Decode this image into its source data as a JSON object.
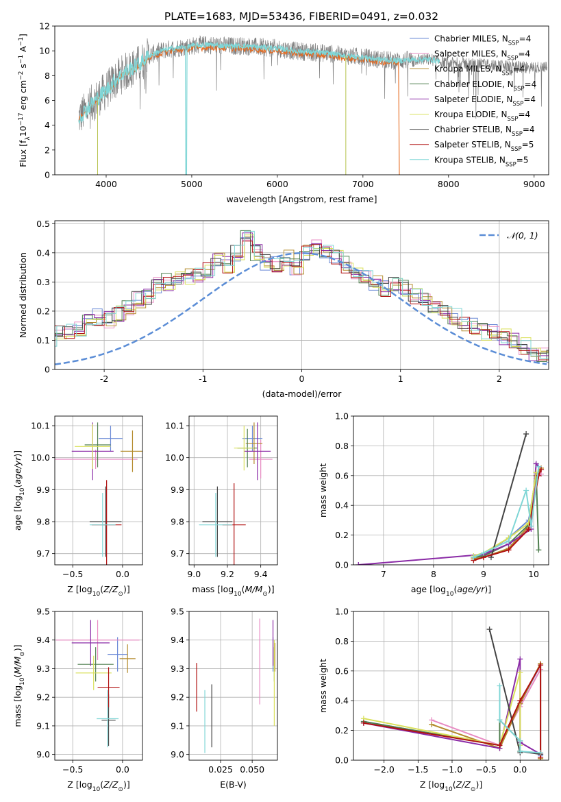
{
  "figure_title": "PLATE=1683, MJD=53436, FIBERID=0491, z=0.032",
  "colors": [
    "#6a89d6",
    "#e88bc3",
    "#b38a2a",
    "#4f7f4f",
    "#8a2aa6",
    "#d9e05a",
    "#444444",
    "#b01010",
    "#7fd6d6"
  ],
  "data_color": "#808080",
  "model_color_main": "#7fd6d6",
  "model_color_orange": "#e66a1f",
  "chart_data": [
    {
      "id": "spectrum",
      "type": "line",
      "xlabel": "wavelength [Angstrom, rest frame]",
      "ylabel": "Flux [f_λ10^-17 erg cm^-2 s^-1 A^-1]",
      "xlim": [
        3400,
        9170
      ],
      "ylim": [
        0,
        12
      ],
      "xticks": [
        4000,
        5000,
        6000,
        7000,
        8000,
        9000
      ],
      "yticks": [
        0,
        2,
        4,
        6,
        8,
        10,
        12
      ],
      "grid": false,
      "legend_position": "top-right",
      "legend": [
        {
          "name": "Chabrier MILES, N",
          "sub": "SSP",
          "suffix": "=4"
        },
        {
          "name": "Salpeter MILES, N",
          "sub": "SSP",
          "suffix": "=4"
        },
        {
          "name": "Kroupa MILES, N",
          "sub": "SSP",
          "suffix": "=4"
        },
        {
          "name": "Chabrier ELODIE, N",
          "sub": "SSP",
          "suffix": "=4"
        },
        {
          "name": "Salpeter ELODIE, N",
          "sub": "SSP",
          "suffix": "=4"
        },
        {
          "name": "Kroupa ELODIE, N",
          "sub": "SSP",
          "suffix": "=4"
        },
        {
          "name": "Chabrier STELIB, N",
          "sub": "SSP",
          "suffix": "=4"
        },
        {
          "name": "Salpeter STELIB, N",
          "sub": "SSP",
          "suffix": "=5"
        },
        {
          "name": "Kroupa STELIB, N",
          "sub": "SSP",
          "suffix": "=5"
        }
      ],
      "continuum": [
        [
          3680,
          4.6
        ],
        [
          3800,
          5.5
        ],
        [
          3900,
          6.2
        ],
        [
          4000,
          6.8
        ],
        [
          4100,
          7.6
        ],
        [
          4200,
          8.2
        ],
        [
          4300,
          8.6
        ],
        [
          4400,
          9.0
        ],
        [
          4500,
          9.6
        ],
        [
          4600,
          9.9
        ],
        [
          4700,
          10.1
        ],
        [
          4800,
          10.2
        ],
        [
          4900,
          10.3
        ],
        [
          5000,
          10.4
        ],
        [
          5200,
          10.5
        ],
        [
          5400,
          10.4
        ],
        [
          5600,
          10.4
        ],
        [
          5800,
          10.3
        ],
        [
          6000,
          10.2
        ],
        [
          6200,
          10.0
        ],
        [
          6400,
          9.9
        ],
        [
          6600,
          9.8
        ],
        [
          6800,
          9.6
        ],
        [
          7000,
          9.5
        ],
        [
          7200,
          9.3
        ],
        [
          7400,
          9.2
        ],
        [
          7600,
          9.3
        ],
        [
          7800,
          9.3
        ],
        [
          8000,
          9.0
        ],
        [
          8200,
          9.0
        ],
        [
          8400,
          8.9
        ],
        [
          8600,
          8.8
        ],
        [
          8800,
          8.7
        ],
        [
          9000,
          8.6
        ],
        [
          9150,
          8.8
        ]
      ]
    },
    {
      "id": "residuals",
      "type": "step",
      "xlabel": "(data-model)/error",
      "ylabel": "Normed distribution",
      "xlim": [
        -2.5,
        2.5
      ],
      "ylim": [
        0,
        0.51
      ],
      "xticks": [
        -2,
        -1,
        0,
        1,
        2
      ],
      "yticks": [
        0.0,
        0.1,
        0.2,
        0.3,
        0.4,
        0.5
      ],
      "grid": true,
      "legend_position": "top-right",
      "reference_label": "N(0,1)",
      "bin_width": 0.1,
      "hist_base": [
        0.03,
        0.02,
        0.03,
        0.05,
        0.05,
        0.05,
        0.07,
        0.08,
        0.1,
        0.1,
        0.12,
        0.13,
        0.14,
        0.16,
        0.18,
        0.17,
        0.19,
        0.21,
        0.24,
        0.25,
        0.29,
        0.3,
        0.32,
        0.32,
        0.32,
        0.34,
        0.37,
        0.36,
        0.4,
        0.45,
        0.4,
        0.37,
        0.36,
        0.38,
        0.35,
        0.4,
        0.42,
        0.4,
        0.38,
        0.36,
        0.32,
        0.32,
        0.3,
        0.28,
        0.3,
        0.28,
        0.25,
        0.24,
        0.21,
        0.19,
        0.18,
        0.16,
        0.15,
        0.13,
        0.13,
        0.11,
        0.1,
        0.08,
        0.06,
        0.05,
        0.05,
        0.04,
        0.04,
        0.03,
        0.03,
        0.03,
        0.02,
        0.02,
        0.02,
        0.01
      ]
    },
    {
      "id": "age_vs_Z",
      "type": "errorbar",
      "xlabel": "Z [log10(Z/Z⊙)]",
      "ylabel": "age  [log10(age/yr)]",
      "xlim": [
        -0.68,
        0.2
      ],
      "ylim": [
        9.665,
        10.13
      ],
      "xticks": [
        -0.5,
        0.0
      ],
      "xtick_labels": [
        "−0.5",
        "0.0"
      ],
      "yticks": [
        9.7,
        9.8,
        9.9,
        10.0,
        10.1
      ],
      "ytick_labels": [
        "9.7",
        "9.8",
        "9.9",
        "10.0",
        "10.1"
      ],
      "grid": true,
      "points": [
        {
          "x": -0.12,
          "xerr": 0.12,
          "y": 10.06,
          "yerr": 0.04,
          "c": 0
        },
        {
          "x": -0.27,
          "xerr": 0.42,
          "y": 9.995,
          "yerr": 0.03,
          "c": 1
        },
        {
          "x": 0.1,
          "xerr": 0.12,
          "y": 10.02,
          "yerr": 0.065,
          "c": 2
        },
        {
          "x": -0.25,
          "xerr": 0.13,
          "y": 10.04,
          "yerr": 0.07,
          "c": 3
        },
        {
          "x": -0.3,
          "xerr": 0.21,
          "y": 10.02,
          "yerr": 0.09,
          "c": 4
        },
        {
          "x": -0.3,
          "xerr": 0.18,
          "y": 10.035,
          "yerr": 0.07,
          "c": 5
        },
        {
          "x": -0.17,
          "xerr": 0.16,
          "y": 9.8,
          "yerr": 0.11,
          "c": 6
        },
        {
          "x": -0.16,
          "xerr": 0.15,
          "y": 9.79,
          "yerr": 0.14,
          "c": 7
        },
        {
          "x": -0.2,
          "xerr": 0.13,
          "y": 9.79,
          "yerr": 0.1,
          "c": 8
        }
      ]
    },
    {
      "id": "age_vs_mass",
      "type": "errorbar",
      "xlabel": "mass [log10(M/M⊙)]",
      "ylabel": "",
      "xlim": [
        8.97,
        9.5
      ],
      "ylim": [
        9.665,
        10.13
      ],
      "xticks": [
        9.0,
        9.2,
        9.4
      ],
      "xtick_labels": [
        "9.0",
        "9.2",
        "9.4"
      ],
      "yticks": [
        9.7,
        9.8,
        9.9,
        10.0,
        10.1
      ],
      "ytick_labels": [
        "9.7",
        "9.8",
        "9.9",
        "10.0",
        "10.1"
      ],
      "grid": true,
      "points": [
        {
          "x": 9.35,
          "xerr": 0.06,
          "y": 10.06,
          "yerr": 0.04,
          "c": 0
        },
        {
          "x": 9.4,
          "xerr": 0.07,
          "y": 9.995,
          "yerr": 0.06,
          "c": 1
        },
        {
          "x": 9.36,
          "xerr": 0.05,
          "y": 10.045,
          "yerr": 0.065,
          "c": 2
        },
        {
          "x": 9.32,
          "xerr": 0.06,
          "y": 10.03,
          "yerr": 0.06,
          "c": 3
        },
        {
          "x": 9.38,
          "xerr": 0.08,
          "y": 10.02,
          "yerr": 0.09,
          "c": 4
        },
        {
          "x": 9.3,
          "xerr": 0.06,
          "y": 10.03,
          "yerr": 0.07,
          "c": 5
        },
        {
          "x": 9.14,
          "xerr": 0.09,
          "y": 9.8,
          "yerr": 0.11,
          "c": 6
        },
        {
          "x": 9.24,
          "xerr": 0.07,
          "y": 9.79,
          "yerr": 0.13,
          "c": 7
        },
        {
          "x": 9.13,
          "xerr": 0.1,
          "y": 9.79,
          "yerr": 0.1,
          "c": 8
        }
      ]
    },
    {
      "id": "weight_vs_age",
      "type": "line",
      "xlabel": "age  [log10(age/yr)]",
      "ylabel": "mass weight",
      "xlim": [
        6.4,
        10.3
      ],
      "ylim": [
        0,
        1.0
      ],
      "xticks": [
        7,
        8,
        9,
        10
      ],
      "xtick_labels": [
        "7",
        "8",
        "9",
        "10"
      ],
      "yticks": [
        0.0,
        0.2,
        0.4,
        0.6,
        0.8,
        1.0
      ],
      "ytick_labels": [
        "0.0",
        "0.2",
        "0.4",
        "0.6",
        "0.8",
        "1.0"
      ],
      "grid": true,
      "series": [
        {
          "c": 0,
          "x": [
            8.8,
            9.0,
            9.5,
            9.9,
            10.05,
            10.15
          ],
          "y": [
            0.05,
            0.07,
            0.18,
            0.3,
            0.6,
            0.64
          ]
        },
        {
          "c": 1,
          "x": [
            8.8,
            9.0,
            9.5,
            9.9,
            10.05,
            10.15
          ],
          "y": [
            0.04,
            0.06,
            0.1,
            0.25,
            0.58,
            0.61
          ]
        },
        {
          "c": 2,
          "x": [
            8.8,
            9.0,
            9.5,
            9.9,
            10.05,
            10.15
          ],
          "y": [
            0.04,
            0.05,
            0.11,
            0.26,
            0.6,
            0.65
          ]
        },
        {
          "c": 3,
          "x": [
            8.8,
            9.0,
            9.5,
            9.9,
            10.05,
            10.1
          ],
          "y": [
            0.05,
            0.06,
            0.14,
            0.27,
            0.62,
            0.1
          ]
        },
        {
          "c": 4,
          "x": [
            6.5,
            9.0,
            9.5,
            9.95,
            10.05,
            10.1
          ],
          "y": [
            0.0,
            0.07,
            0.14,
            0.24,
            0.68,
            0.66
          ]
        },
        {
          "c": 5,
          "x": [
            8.8,
            9.0,
            9.5,
            9.9,
            10.05
          ],
          "y": [
            0.06,
            0.08,
            0.18,
            0.28,
            0.62
          ]
        },
        {
          "c": 6,
          "x": [
            9.15,
            9.85
          ],
          "y": [
            0.05,
            0.88
          ]
        },
        {
          "c": 7,
          "x": [
            8.8,
            9.0,
            9.5,
            9.9,
            10.1,
            10.15
          ],
          "y": [
            0.03,
            0.05,
            0.1,
            0.24,
            0.6,
            0.64
          ]
        },
        {
          "c": 8,
          "x": [
            8.8,
            9.0,
            9.5,
            9.85,
            9.95,
            10.1
          ],
          "y": [
            0.05,
            0.08,
            0.16,
            0.5,
            0.26,
            0.66
          ]
        }
      ]
    },
    {
      "id": "mass_vs_Z",
      "type": "errorbar",
      "xlabel": "Z [log10(Z/Z⊙)]",
      "ylabel": "mass [log10(M/M⊙)]",
      "xlim": [
        -0.68,
        0.2
      ],
      "ylim": [
        8.98,
        9.5
      ],
      "xticks": [
        -0.5,
        0.0
      ],
      "xtick_labels": [
        "−0.5",
        "0.0"
      ],
      "yticks": [
        9.0,
        9.1,
        9.2,
        9.3,
        9.4,
        9.5
      ],
      "ytick_labels": [
        "9.0",
        "9.1",
        "9.2",
        "9.3",
        "9.4",
        "9.5"
      ],
      "grid": true,
      "points": [
        {
          "x": -0.05,
          "xerr": 0.1,
          "y": 9.35,
          "yerr": 0.06,
          "c": 0
        },
        {
          "x": -0.25,
          "xerr": 0.42,
          "y": 9.4,
          "yerr": 0.07,
          "c": 1
        },
        {
          "x": 0.05,
          "xerr": 0.08,
          "y": 9.335,
          "yerr": 0.05,
          "c": 2
        },
        {
          "x": -0.27,
          "xerr": 0.18,
          "y": 9.315,
          "yerr": 0.06,
          "c": 3
        },
        {
          "x": -0.32,
          "xerr": 0.19,
          "y": 9.39,
          "yerr": 0.08,
          "c": 4
        },
        {
          "x": -0.29,
          "xerr": 0.18,
          "y": 9.285,
          "yerr": 0.06,
          "c": 5
        },
        {
          "x": -0.14,
          "xerr": 0.07,
          "y": 9.12,
          "yerr": 0.09,
          "c": 6
        },
        {
          "x": -0.14,
          "xerr": 0.11,
          "y": 9.235,
          "yerr": 0.07,
          "c": 7
        },
        {
          "x": -0.15,
          "xerr": 0.11,
          "y": 9.125,
          "yerr": 0.1,
          "c": 8
        }
      ]
    },
    {
      "id": "mass_vs_ebv",
      "type": "errorbar",
      "xlabel": "E(B-V)",
      "ylabel": "",
      "xlim": [
        0.0,
        0.07
      ],
      "ylim": [
        8.98,
        9.5
      ],
      "xticks": [
        0.025,
        0.05
      ],
      "xtick_labels": [
        "0.025",
        "0.050"
      ],
      "yticks": [
        9.0,
        9.1,
        9.2,
        9.3,
        9.4,
        9.5
      ],
      "ytick_labels": [
        "9.0",
        "9.1",
        "9.2",
        "9.3",
        "9.4",
        "9.5"
      ],
      "grid": true,
      "points": [
        {
          "x": 0.0665,
          "xerr": 0,
          "y": 9.35,
          "yerr": 0.06,
          "c": 0
        },
        {
          "x": 0.056,
          "xerr": 0,
          "y": 9.325,
          "yerr": 0.15,
          "c": 1
        },
        {
          "x": 0.068,
          "xerr": 0,
          "y": 9.34,
          "yerr": 0.05,
          "c": 2
        },
        {
          "x": 0.0675,
          "xerr": 0,
          "y": 9.315,
          "yerr": 0.06,
          "c": 3
        },
        {
          "x": 0.0665,
          "xerr": 0,
          "y": 9.39,
          "yerr": 0.08,
          "c": 4
        },
        {
          "x": 0.0675,
          "xerr": 0,
          "y": 9.25,
          "yerr": 0.15,
          "c": 5
        },
        {
          "x": 0.018,
          "xerr": 0,
          "y": 9.135,
          "yerr": 0.11,
          "c": 6
        },
        {
          "x": 0.006,
          "xerr": 0,
          "y": 9.235,
          "yerr": 0.085,
          "c": 7
        },
        {
          "x": 0.0125,
          "xerr": 0,
          "y": 9.115,
          "yerr": 0.11,
          "c": 8
        }
      ]
    },
    {
      "id": "weight_vs_Z",
      "type": "line",
      "xlabel": "Z [log10(Z/Z⊙)]",
      "ylabel": "mass weight",
      "xlim": [
        -2.45,
        0.42
      ],
      "ylim": [
        0,
        1.0
      ],
      "xticks": [
        -2.0,
        -1.5,
        -1.0,
        -0.5,
        0.0
      ],
      "xtick_labels": [
        "−2.0",
        "−1.5",
        "−1.0",
        "−0.5",
        "0.0"
      ],
      "yticks": [
        0.0,
        0.2,
        0.4,
        0.6,
        0.8,
        1.0
      ],
      "ytick_labels": [
        "0.0",
        "0.2",
        "0.4",
        "0.6",
        "0.8",
        "1.0"
      ],
      "grid": true,
      "series": [
        {
          "c": 0,
          "x": [
            -2.3,
            -0.3,
            0.0,
            0.3,
            0.3
          ],
          "y": [
            0.26,
            0.1,
            0.38,
            0.64,
            0.03
          ]
        },
        {
          "c": 1,
          "x": [
            -1.3,
            -0.3,
            0.0,
            0.3,
            0.3
          ],
          "y": [
            0.27,
            0.1,
            0.36,
            0.61,
            0.02
          ]
        },
        {
          "c": 2,
          "x": [
            -1.3,
            -0.3,
            0.0,
            0.3,
            0.3
          ],
          "y": [
            0.24,
            0.08,
            0.38,
            0.65,
            0.01
          ]
        },
        {
          "c": 3,
          "x": [
            -2.3,
            -0.3,
            -0.3,
            0.0,
            0.0
          ],
          "y": [
            0.26,
            0.1,
            0.27,
            0.13,
            0.06
          ]
        },
        {
          "c": 4,
          "x": [
            -2.3,
            -0.3,
            0.0,
            0.0,
            0.3
          ],
          "y": [
            0.25,
            0.08,
            0.68,
            0.12,
            0.04
          ]
        },
        {
          "c": 5,
          "x": [
            -2.3,
            -0.3,
            0.0,
            0.0,
            0.0
          ],
          "y": [
            0.28,
            0.1,
            0.59,
            0.1,
            0.06
          ]
        },
        {
          "c": 6,
          "x": [
            -0.45,
            0.0,
            0.0,
            0.3
          ],
          "y": [
            0.88,
            0.05,
            0.06,
            0.04
          ]
        },
        {
          "c": 7,
          "x": [
            -2.3,
            -0.3,
            0.0,
            0.3,
            0.3
          ],
          "y": [
            0.25,
            0.1,
            0.4,
            0.64,
            0.02
          ]
        },
        {
          "c": 8,
          "x": [
            -0.3,
            -0.3,
            0.0,
            0.0,
            0.3
          ],
          "y": [
            0.5,
            0.27,
            0.13,
            0.06,
            0.05
          ]
        }
      ]
    }
  ]
}
